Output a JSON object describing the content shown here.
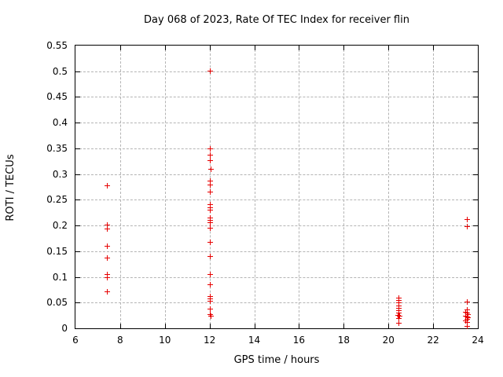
{
  "chart_data": {
    "type": "scatter",
    "title": "Day 068 of 2023, Rate Of TEC Index for receiver flin",
    "xlabel": "GPS time / hours",
    "ylabel": "ROTI / TECUs",
    "xlim": [
      6,
      24
    ],
    "ylim": [
      0,
      0.55
    ],
    "xticks": [
      6,
      8,
      10,
      12,
      14,
      16,
      18,
      20,
      22,
      24
    ],
    "xtick_labels": [
      "6",
      "8",
      "10",
      "12",
      "14",
      "16",
      "18",
      "20",
      "22",
      "24"
    ],
    "yticks": [
      0,
      0.05,
      0.1,
      0.15,
      0.2,
      0.25,
      0.3,
      0.35,
      0.4,
      0.45,
      0.5,
      0.55
    ],
    "ytick_labels": [
      "0",
      "0.05",
      "0.1",
      "0.15",
      "0.2",
      "0.25",
      "0.3",
      "0.35",
      "0.4",
      "0.45",
      "0.5",
      "0.55"
    ],
    "grid": true,
    "legend": false,
    "marker": "plus",
    "series": [
      {
        "name": "ROTI",
        "color": "#e60000",
        "points": [
          [
            7.4,
            0.278
          ],
          [
            7.4,
            0.201
          ],
          [
            7.4,
            0.194
          ],
          [
            7.4,
            0.161
          ],
          [
            7.4,
            0.138
          ],
          [
            7.4,
            0.106
          ],
          [
            7.4,
            0.099
          ],
          [
            7.4,
            0.072
          ],
          [
            12.0,
            0.501
          ],
          [
            12.0,
            0.35
          ],
          [
            12.0,
            0.338
          ],
          [
            12.0,
            0.327
          ],
          [
            12.05,
            0.31
          ],
          [
            12.0,
            0.287
          ],
          [
            12.0,
            0.28
          ],
          [
            12.0,
            0.266
          ],
          [
            12.0,
            0.241
          ],
          [
            12.0,
            0.235
          ],
          [
            12.0,
            0.23
          ],
          [
            12.0,
            0.216
          ],
          [
            12.0,
            0.211
          ],
          [
            12.0,
            0.206
          ],
          [
            12.0,
            0.195
          ],
          [
            12.0,
            0.168
          ],
          [
            12.0,
            0.141
          ],
          [
            12.0,
            0.105
          ],
          [
            12.0,
            0.085
          ],
          [
            12.0,
            0.062
          ],
          [
            12.0,
            0.058
          ],
          [
            12.0,
            0.054
          ],
          [
            12.0,
            0.038
          ],
          [
            12.0,
            0.028
          ],
          [
            12.05,
            0.025
          ],
          [
            20.45,
            0.06
          ],
          [
            20.45,
            0.055
          ],
          [
            20.45,
            0.05
          ],
          [
            20.45,
            0.045
          ],
          [
            20.45,
            0.04
          ],
          [
            20.45,
            0.035
          ],
          [
            20.45,
            0.03
          ],
          [
            20.4,
            0.026
          ],
          [
            20.5,
            0.025
          ],
          [
            20.45,
            0.02
          ],
          [
            20.45,
            0.01
          ],
          [
            23.5,
            0.212
          ],
          [
            23.5,
            0.198
          ],
          [
            23.5,
            0.052
          ],
          [
            23.5,
            0.037
          ],
          [
            23.45,
            0.032
          ],
          [
            23.5,
            0.03
          ],
          [
            23.55,
            0.028
          ],
          [
            23.45,
            0.025
          ],
          [
            23.5,
            0.023
          ],
          [
            23.55,
            0.021
          ],
          [
            23.5,
            0.019
          ],
          [
            23.45,
            0.016
          ],
          [
            23.5,
            0.012
          ],
          [
            23.5,
            0.004
          ]
        ]
      }
    ]
  },
  "colors": {
    "marker": "#e60000",
    "grid": "#b4b4b4",
    "axis": "#000000",
    "text": "#000000",
    "background": "#ffffff"
  }
}
